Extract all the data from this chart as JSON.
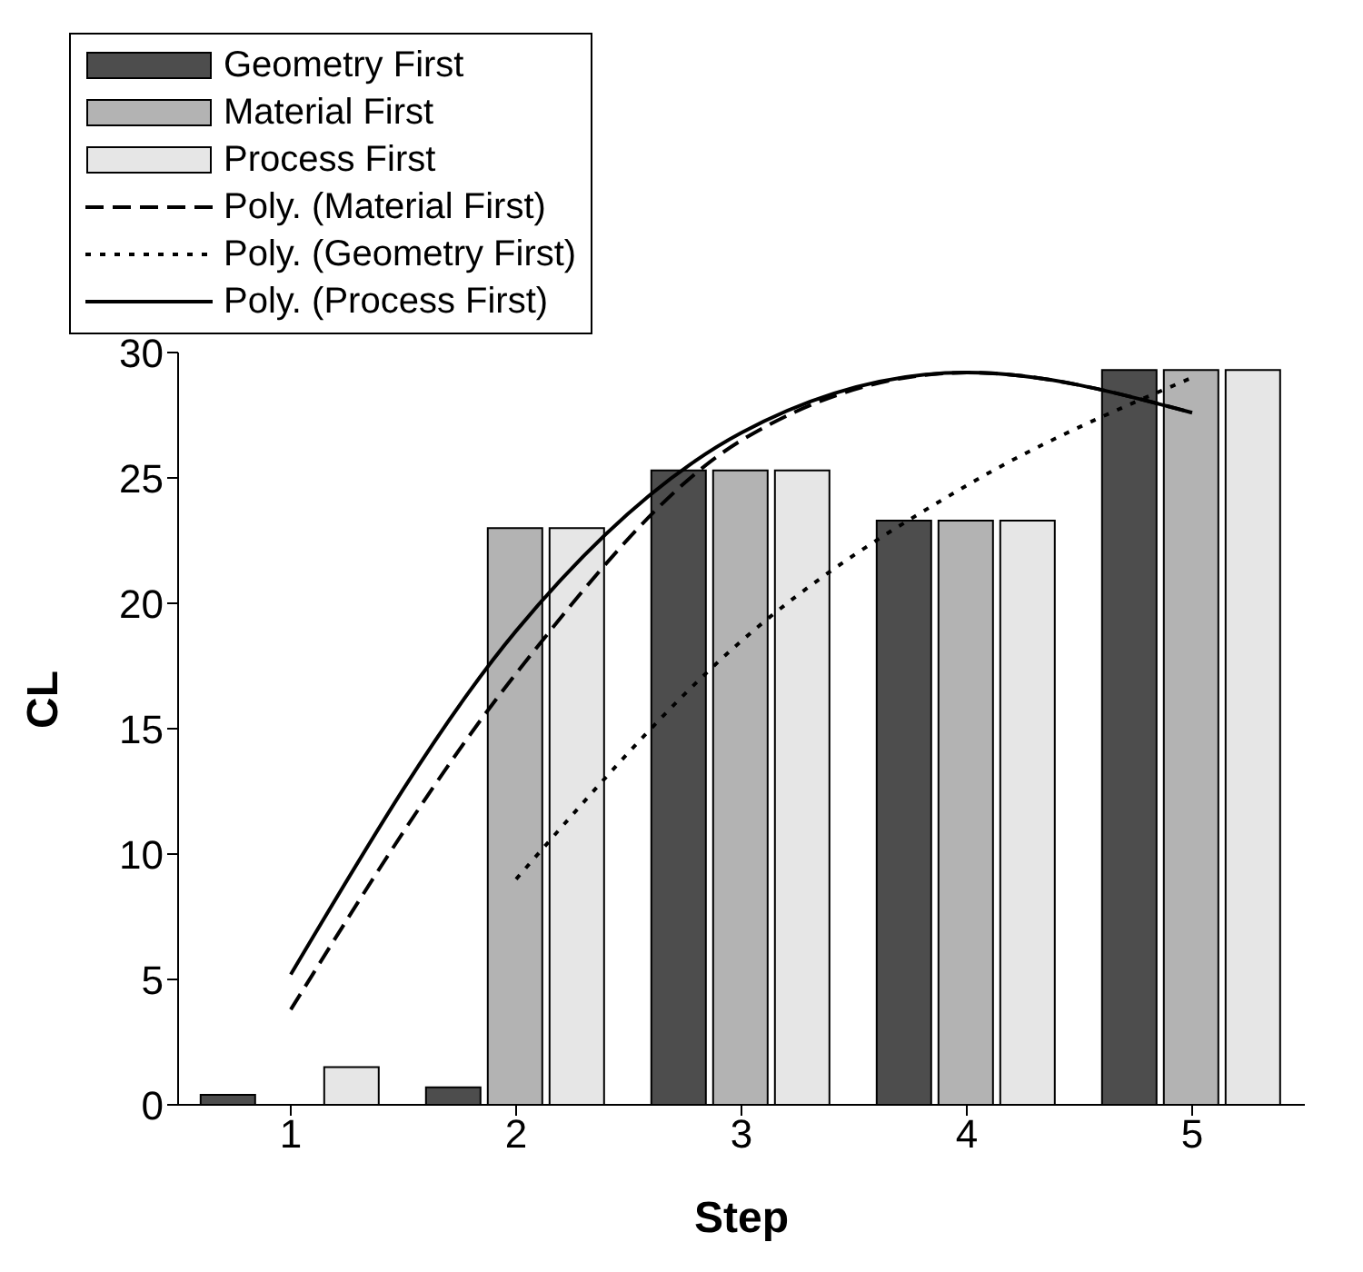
{
  "chart_data": {
    "type": "bar",
    "xlabel": "Step",
    "ylabel": "CL",
    "categories": [
      "1",
      "2",
      "3",
      "4",
      "5"
    ],
    "series": [
      {
        "name": "Geometry First",
        "color": "#4d4d4d",
        "values": [
          0.4,
          0.7,
          25.3,
          23.3,
          29.3
        ]
      },
      {
        "name": "Material First",
        "color": "#b3b3b3",
        "values": [
          0,
          23,
          25.3,
          23.3,
          29.3
        ]
      },
      {
        "name": "Process First",
        "color": "#e6e6e6",
        "values": [
          1.5,
          23,
          25.3,
          23.3,
          29.3
        ]
      },
      {
        "name": "Poly. (Material First)",
        "type": "line",
        "color": "#000000",
        "line_style": "dashed",
        "values": [
          3.8,
          17.2,
          26.5,
          29.2,
          27.6
        ]
      },
      {
        "name": "Poly. (Geometry First)",
        "type": "line",
        "color": "#000000",
        "line_style": "dotted",
        "values": [
          null,
          9,
          18.5,
          24.7,
          29
        ]
      },
      {
        "name": "Poly. (Process First)",
        "type": "line",
        "color": "#000000",
        "line_style": "solid",
        "values": [
          5.2,
          18.9,
          26.8,
          29.2,
          27.6
        ]
      }
    ],
    "ylim": [
      0,
      30
    ],
    "yticks": [
      0,
      5,
      10,
      15,
      20,
      25,
      30
    ],
    "legend": "top left",
    "marker": "none"
  }
}
